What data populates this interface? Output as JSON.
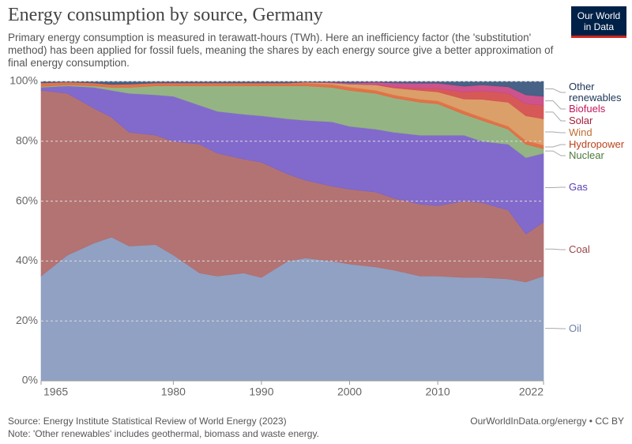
{
  "header": {
    "logo": "Our World in Data"
  },
  "chart_data": {
    "type": "area",
    "title": "Energy consumption by source, Germany",
    "subtitle": "Primary energy consumption is measured in terawatt-hours (TWh). Here an inefficiency factor (the 'substitution' method) has been applied for fossil fuels, meaning the shares by each energy source give a better approximation of final energy consumption.",
    "x": [
      1965,
      1968,
      1971,
      1973,
      1975,
      1978,
      1980,
      1983,
      1985,
      1988,
      1990,
      1993,
      1995,
      1998,
      2000,
      2003,
      2005,
      2008,
      2010,
      2013,
      2015,
      2018,
      2020,
      2022
    ],
    "series": [
      {
        "name": "Oil",
        "color": "#8a9cc0",
        "label_color": "#6d7fa8",
        "values": [
          35,
          42,
          46,
          48,
          45,
          45.5,
          42,
          36,
          35,
          36,
          34.5,
          40,
          41,
          40,
          39,
          38,
          37,
          35,
          35,
          34.5,
          34.5,
          34,
          33,
          35
        ]
      },
      {
        "name": "Coal",
        "color": "#b06b6b",
        "label_color": "#9a4545",
        "values": [
          62,
          54,
          45,
          40,
          38,
          36.5,
          38,
          43,
          41,
          38,
          38.5,
          29,
          26,
          25,
          25,
          25,
          24,
          24,
          23.5,
          25.5,
          25,
          23,
          16,
          18
        ]
      },
      {
        "name": "Gas",
        "color": "#7b62c9",
        "label_color": "#5a3fb0",
        "values": [
          1,
          2.5,
          7,
          9,
          13,
          13.5,
          15,
          13,
          14,
          15,
          15.5,
          18.5,
          20,
          21.5,
          21,
          21,
          22,
          23,
          23.5,
          22,
          20.5,
          22,
          25.5,
          23
        ]
      },
      {
        "name": "Nuclear",
        "color": "#8fb07d",
        "label_color": "#4c7a3a",
        "values": [
          0.3,
          0.3,
          0.5,
          1,
          2,
          3,
          3.5,
          6.5,
          8.5,
          9.5,
          10,
          11,
          11.5,
          11.5,
          12,
          12,
          11.5,
          11,
          10.5,
          7,
          7,
          5,
          4.5,
          1.5
        ]
      },
      {
        "name": "Hydropower",
        "color": "#e06a3e",
        "label_color": "#b9431c",
        "values": [
          1.2,
          1,
          1,
          1,
          1.1,
          1,
          1,
          1,
          1,
          1,
          1,
          1,
          1,
          1,
          1.1,
          1,
          1,
          1,
          1,
          1.1,
          1,
          1,
          1.2,
          1.2
        ]
      },
      {
        "name": "Wind",
        "color": "#d99a62",
        "label_color": "#bf6f30",
        "values": [
          0,
          0,
          0,
          0,
          0,
          0,
          0,
          0,
          0,
          0,
          0,
          0,
          0.2,
          0.5,
          1,
          1.8,
          2.3,
          3,
          3,
          4,
          6,
          8,
          8.3,
          8.8
        ]
      },
      {
        "name": "Solar",
        "color": "#d4504e",
        "label_color": "#a31d3a",
        "values": [
          0,
          0,
          0,
          0,
          0,
          0,
          0,
          0,
          0,
          0,
          0,
          0,
          0,
          0,
          0,
          0.1,
          0.3,
          0.6,
          1.1,
          2.3,
          2.8,
          3,
          4,
          4.5
        ]
      },
      {
        "name": "Biofuels",
        "color": "#c94a86",
        "label_color": "#c2185b",
        "values": [
          0,
          0,
          0,
          0,
          0,
          0,
          0,
          0,
          0,
          0,
          0,
          0,
          0.1,
          0.2,
          0.4,
          0.8,
          1.4,
          1.8,
          1.8,
          2,
          2,
          2.2,
          3,
          3
        ]
      },
      {
        "name": "Other renewables",
        "color": "#3d5a80",
        "label_color": "#1d3557",
        "values": [
          0.5,
          0.2,
          0.5,
          1,
          0.9,
          0.5,
          0.5,
          0.5,
          0.5,
          0.5,
          0.5,
          0.5,
          0.2,
          0.3,
          0.5,
          0.3,
          0.5,
          0.6,
          0.6,
          1.6,
          1.2,
          1.8,
          4.5,
          5
        ]
      }
    ],
    "xlim": [
      1965,
      2022
    ],
    "xticks": [
      1965,
      1980,
      1990,
      2000,
      2010,
      2022
    ],
    "ylim": [
      0,
      100
    ],
    "yticks": [
      {
        "value": 0,
        "label": "0%"
      },
      {
        "value": 20,
        "label": "20%"
      },
      {
        "value": 40,
        "label": "40%"
      },
      {
        "value": 60,
        "label": "60%"
      },
      {
        "value": 80,
        "label": "80%"
      },
      {
        "value": 100,
        "label": "100%"
      }
    ],
    "grid": true
  },
  "footer": {
    "source": "Source: Energy Institute Statistical Review of World Energy (2023)",
    "note": "Note: 'Other renewables' includes geothermal, biomass and waste energy.",
    "url": "OurWorldInData.org/energy • CC BY"
  }
}
